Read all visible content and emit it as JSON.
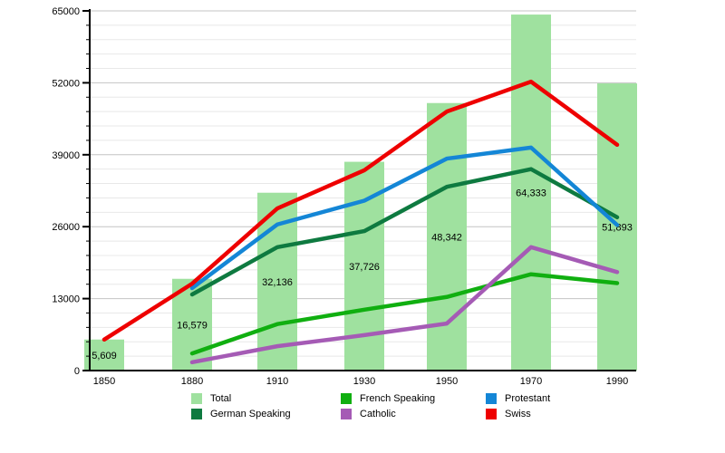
{
  "chart_data": {
    "type": "bar+line",
    "title": "",
    "xlabel": "",
    "ylabel": "",
    "categories": [
      "1850",
      "1880",
      "1910",
      "1930",
      "1950",
      "1970",
      "1990"
    ],
    "ylim": [
      0,
      65000
    ],
    "y_tick_labels": [
      "0",
      "13000",
      "26000",
      "39000",
      "52000",
      "65000"
    ],
    "y_major_step": 13000,
    "y_minor_step": 2600,
    "grid": true,
    "legend_position": "bottom",
    "bars": {
      "name": "Total",
      "color": "#9fe19f",
      "values": [
        5609,
        16579,
        32136,
        37726,
        48342,
        64333,
        51893
      ],
      "labels": [
        "5,609",
        "16,579",
        "32,136",
        "37,726",
        "48,342",
        "64,333",
        "51,893"
      ]
    },
    "series": [
      {
        "name": "French Speaking",
        "color": "#10af10",
        "values": [
          null,
          3100,
          8400,
          11000,
          13300,
          17400,
          15800
        ]
      },
      {
        "name": "German Speaking",
        "color": "#0e7a40",
        "values": [
          null,
          13750,
          22300,
          25200,
          33200,
          36400,
          27700
        ]
      },
      {
        "name": "Protestant",
        "color": "#1486d6",
        "values": [
          null,
          14900,
          26400,
          30700,
          38300,
          40300,
          26300
        ]
      },
      {
        "name": "Catholic",
        "color": "#a55bb5",
        "values": [
          null,
          1500,
          4400,
          6400,
          8500,
          22300,
          17800
        ]
      },
      {
        "name": "Swiss",
        "color": "#ee0000",
        "values": [
          5600,
          15700,
          29300,
          36200,
          46800,
          52200,
          40800
        ]
      }
    ]
  },
  "legend": {
    "items": [
      {
        "label": "Total",
        "color": "#9fe19f"
      },
      {
        "label": "French Speaking",
        "color": "#10af10"
      },
      {
        "label": "Protestant",
        "color": "#1486d6"
      },
      {
        "label": "German Speaking",
        "color": "#0e7a40"
      },
      {
        "label": "Catholic",
        "color": "#a55bb5"
      },
      {
        "label": "Swiss",
        "color": "#ee0000"
      }
    ]
  },
  "colors": {
    "axis": "#000000",
    "grid_major": "#c4c4c4",
    "grid_minor": "#e8e8e8",
    "text": "#000000",
    "background": "#ffffff"
  }
}
